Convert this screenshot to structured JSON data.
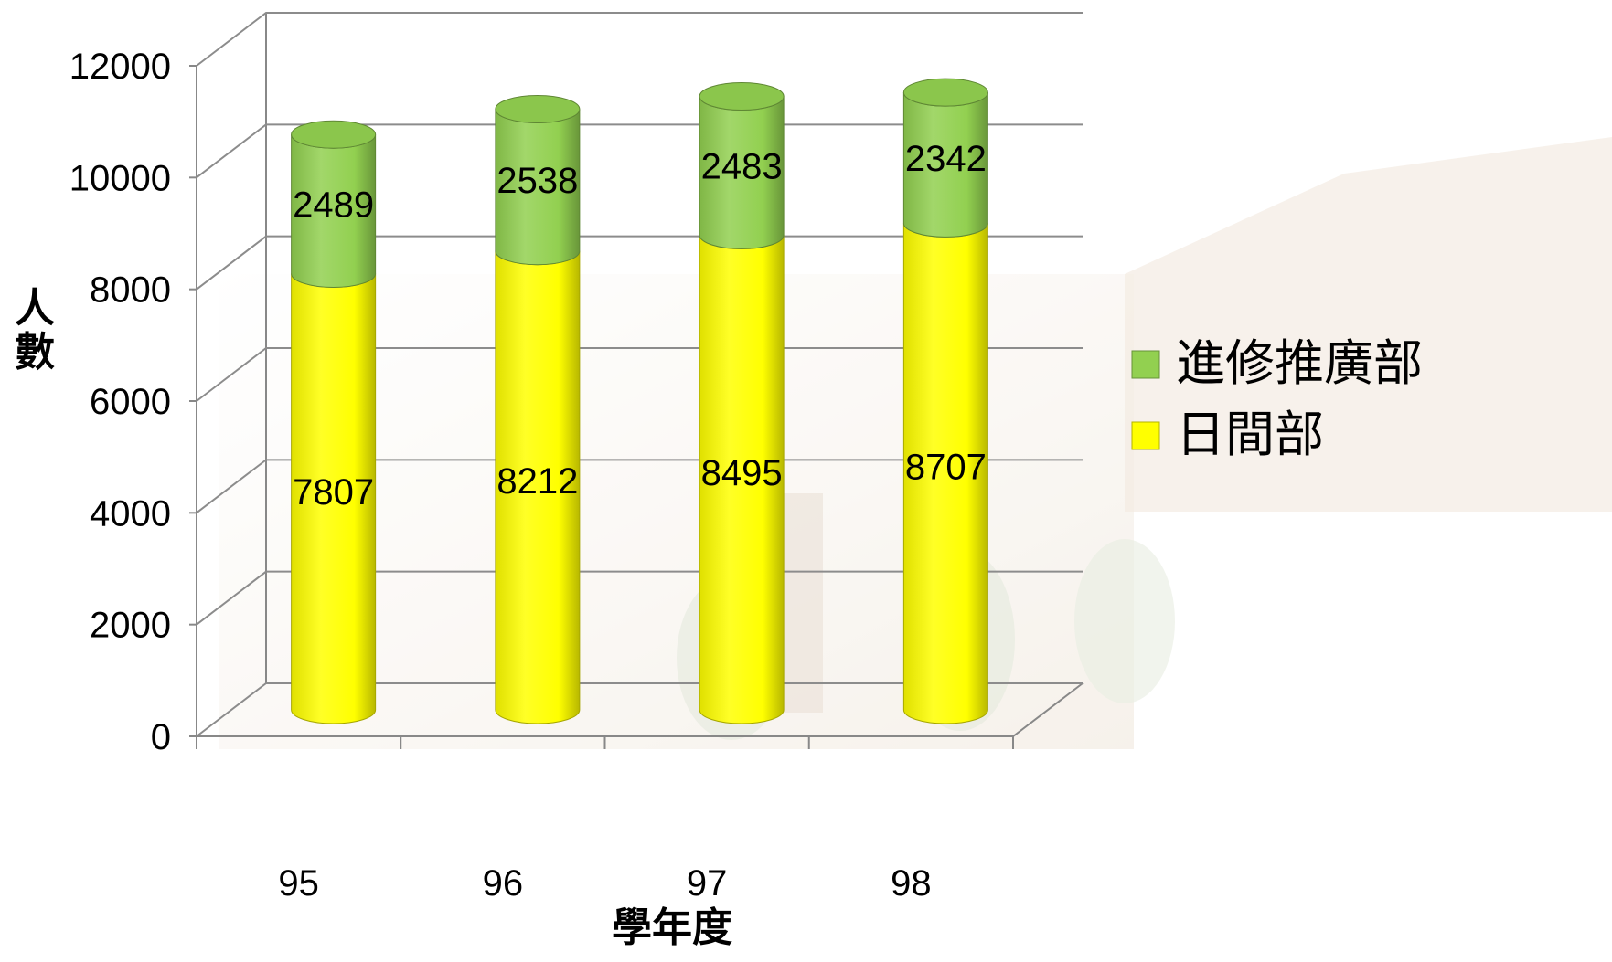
{
  "chart_data": {
    "type": "bar",
    "stacked": true,
    "style": "3d-cylinder",
    "categories": [
      "95",
      "96",
      "97",
      "98"
    ],
    "series": [
      {
        "name": "日間部",
        "color": "#FFFF00",
        "values": [
          7807,
          8212,
          8495,
          8707
        ]
      },
      {
        "name": "進修推廣部",
        "color": "#92D050",
        "values": [
          2489,
          2538,
          2483,
          2342
        ]
      }
    ],
    "title": "",
    "xlabel": "學年度",
    "ylabel": "人數",
    "ylim": [
      0,
      12000
    ],
    "yticks": [
      "0",
      "2000",
      "4000",
      "6000",
      "8000",
      "10000",
      "12000"
    ],
    "grid": true,
    "legend_position": "right"
  }
}
